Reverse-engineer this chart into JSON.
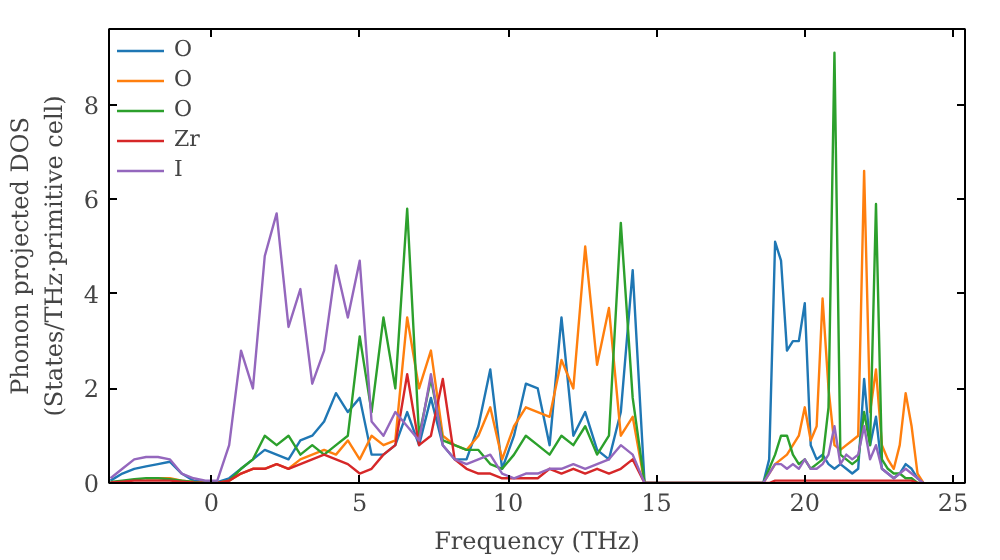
{
  "chart_data": {
    "type": "line",
    "xlabel": "Frequency (THz)",
    "ylabel": "Phonon projected DOS\n(States/THz·primitive cell)",
    "x": [
      -3.4,
      -3.0,
      -2.6,
      -2.2,
      -1.8,
      -1.4,
      -1.0,
      -0.6,
      -0.2,
      0.2,
      0.6,
      1.0,
      1.4,
      1.8,
      2.2,
      2.6,
      3.0,
      3.4,
      3.8,
      4.2,
      4.6,
      5.0,
      5.4,
      5.8,
      6.2,
      6.6,
      7.0,
      7.4,
      7.8,
      8.2,
      8.6,
      9.0,
      9.4,
      9.8,
      10.2,
      10.6,
      11.0,
      11.4,
      11.8,
      12.2,
      12.6,
      13.0,
      13.4,
      13.8,
      14.2,
      14.6,
      18.6,
      18.8,
      19.0,
      19.2,
      19.4,
      19.6,
      19.8,
      20.0,
      20.2,
      20.4,
      20.6,
      20.8,
      21.0,
      21.2,
      21.4,
      21.6,
      21.8,
      22.0,
      22.2,
      22.4,
      22.6,
      22.8,
      23.0,
      23.2,
      23.4,
      23.6,
      23.8,
      24.0
    ],
    "series": [
      {
        "name": "O",
        "color": "#1f77b4",
        "values": [
          0.05,
          0.2,
          0.3,
          0.35,
          0.4,
          0.45,
          0.2,
          0.05,
          0.02,
          0.02,
          0.1,
          0.3,
          0.5,
          0.7,
          0.6,
          0.5,
          0.9,
          1.0,
          1.3,
          1.9,
          1.5,
          1.8,
          0.6,
          0.6,
          0.8,
          1.5,
          0.8,
          1.8,
          0.8,
          0.5,
          0.5,
          1.2,
          2.4,
          0.3,
          1.0,
          2.1,
          2.0,
          0.8,
          3.5,
          1.0,
          1.5,
          0.7,
          0.5,
          1.5,
          4.5,
          0,
          0,
          0.5,
          5.1,
          4.7,
          2.8,
          3.0,
          3.0,
          3.8,
          0.8,
          0.5,
          0.6,
          0.4,
          0.3,
          0.4,
          0.3,
          0.2,
          0.3,
          2.2,
          0.8,
          1.4,
          0.3,
          0.2,
          0.1,
          0.2,
          0.4,
          0.3,
          0.1,
          0
        ]
      },
      {
        "name": "O",
        "color": "#ff7f0e",
        "x": [
          -2.2,
          -1.8,
          -1.4,
          -1.0,
          -0.6,
          -0.2,
          0.2,
          0.6,
          1.0,
          1.4,
          1.8,
          2.2,
          2.6,
          3.0,
          3.4,
          3.8,
          4.2,
          4.6,
          5.0,
          5.4,
          5.8,
          6.2,
          6.6,
          7.0,
          7.4,
          7.8,
          8.2,
          8.6,
          9.0,
          9.4,
          9.8,
          10.2,
          10.6,
          11.0,
          11.4,
          11.8,
          12.2,
          12.6,
          13.0,
          13.4,
          13.8,
          14.2,
          14.6,
          18.6,
          18.8,
          19.0,
          19.2,
          19.4,
          19.6,
          19.8,
          20.0,
          20.2,
          20.4,
          20.6,
          20.8,
          21.0,
          21.2,
          21.4,
          21.6,
          21.8,
          22.0,
          22.2,
          22.4,
          22.6,
          22.8,
          23.0,
          23.2,
          23.4,
          23.6,
          23.8,
          24.0
        ],
        "values": [
          0.1,
          0.1,
          0.1,
          0.05,
          0.02,
          0,
          0,
          0.05,
          0.2,
          0.3,
          0.3,
          0.4,
          0.3,
          0.5,
          0.6,
          0.7,
          0.6,
          0.9,
          0.5,
          1.0,
          0.8,
          0.9,
          3.5,
          2.0,
          2.8,
          1.0,
          0.8,
          0.7,
          1.0,
          1.6,
          0.5,
          1.2,
          1.6,
          1.5,
          1.4,
          2.6,
          2.0,
          5.0,
          2.5,
          3.7,
          1.0,
          1.4,
          0,
          0,
          0.2,
          0.4,
          0.5,
          0.6,
          0.8,
          1.0,
          1.6,
          0.9,
          1.2,
          3.9,
          2.0,
          0.8,
          0.7,
          0.8,
          0.9,
          1.0,
          6.6,
          1.5,
          2.4,
          0.8,
          0.5,
          0.3,
          0.8,
          1.9,
          1.2,
          0.2,
          0
        ]
      },
      {
        "name": "O",
        "color": "#2ca02c",
        "values": [
          0.02,
          0.05,
          0.08,
          0.1,
          0.1,
          0.08,
          0.05,
          0.02,
          0,
          0,
          0.05,
          0.3,
          0.5,
          1.0,
          0.8,
          1.0,
          0.6,
          0.8,
          0.6,
          0.8,
          1.0,
          3.1,
          1.5,
          3.5,
          2.0,
          5.8,
          1.0,
          2.2,
          0.9,
          0.8,
          0.7,
          0.7,
          0.4,
          0.3,
          0.6,
          1.0,
          0.8,
          0.6,
          1.0,
          0.8,
          1.2,
          0.6,
          1.0,
          5.5,
          1.8,
          0,
          0,
          0.3,
          0.6,
          1.0,
          1.0,
          0.6,
          0.4,
          0.5,
          0.3,
          0.4,
          0.5,
          1.6,
          9.1,
          0.6,
          0.5,
          0.4,
          0.5,
          1.5,
          0.8,
          5.9,
          0.5,
          0.3,
          0.2,
          0.2,
          0.1,
          0.1,
          0,
          0
        ]
      },
      {
        "name": "Zr",
        "color": "#d62728",
        "values": [
          0.01,
          0.03,
          0.05,
          0.05,
          0.05,
          0.05,
          0.03,
          0.01,
          0,
          0,
          0.05,
          0.2,
          0.3,
          0.3,
          0.4,
          0.3,
          0.4,
          0.5,
          0.6,
          0.5,
          0.4,
          0.2,
          0.3,
          0.6,
          0.8,
          2.3,
          0.8,
          1.0,
          2.2,
          0.5,
          0.3,
          0.2,
          0.2,
          0.1,
          0.1,
          0.1,
          0.1,
          0.3,
          0.2,
          0.3,
          0.2,
          0.3,
          0.2,
          0.3,
          0.5,
          0,
          0,
          0,
          0.05,
          0.05,
          0.05,
          0.05,
          0.05,
          0.05,
          0.05,
          0.05,
          0.05,
          0.05,
          0.05,
          0.05,
          0.05,
          0.05,
          0.05,
          0.05,
          0.05,
          0.05,
          0.05,
          0.05,
          0.05,
          0.05,
          0.05,
          0.05,
          0,
          0
        ]
      },
      {
        "name": "I",
        "color": "#9467bd",
        "values": [
          0.1,
          0.3,
          0.5,
          0.55,
          0.55,
          0.5,
          0.2,
          0.1,
          0.05,
          0.05,
          0.8,
          2.8,
          2.0,
          4.8,
          5.7,
          3.3,
          4.1,
          2.1,
          2.8,
          4.6,
          3.5,
          4.7,
          1.3,
          1.0,
          1.5,
          1.2,
          0.9,
          2.3,
          0.8,
          0.5,
          0.4,
          0.5,
          0.6,
          0.2,
          0.1,
          0.2,
          0.2,
          0.3,
          0.3,
          0.4,
          0.3,
          0.4,
          0.5,
          0.8,
          0.6,
          0,
          0,
          0.2,
          0.4,
          0.4,
          0.3,
          0.4,
          0.3,
          0.5,
          0.3,
          0.3,
          0.4,
          0.6,
          1.2,
          0.4,
          0.6,
          0.5,
          0.6,
          1.2,
          0.5,
          0.8,
          0.3,
          0.2,
          0.1,
          0.2,
          0.3,
          0.2,
          0.1,
          0
        ]
      }
    ],
    "xlim": [
      -3.45,
      25.4
    ],
    "ylim": [
      0,
      9.6
    ],
    "xticks": [
      0,
      5,
      10,
      15,
      20,
      25
    ],
    "yticks": [
      0,
      2,
      4,
      6,
      8
    ],
    "grid": false,
    "legend": "top left",
    "marker": "none",
    "line_style": "solid"
  }
}
